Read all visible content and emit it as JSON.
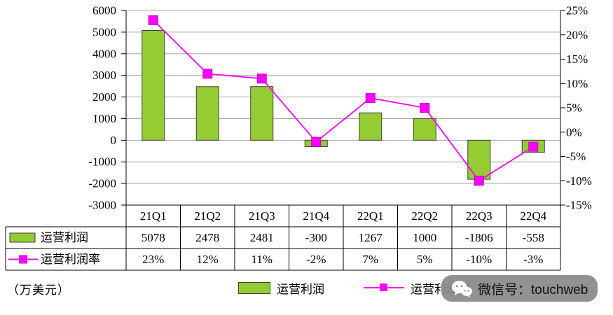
{
  "unit_label": "（万美元）",
  "watermark": {
    "text": "微信号：touchweb",
    "icon": "wechat-icon"
  },
  "legend": {
    "bar_label": "运营利润",
    "line_label": "运营利润率"
  },
  "colors": {
    "bar": "#95CB33",
    "bar_border": "#404040",
    "line": "#FF00FF",
    "marker_border": "#C400C4",
    "grid": "#A6A6A6",
    "axis": "#000000",
    "watermark_bg": "#8A8A8A"
  },
  "chart_data": {
    "type": "bar+line",
    "categories": [
      "21Q1",
      "21Q2",
      "21Q3",
      "21Q4",
      "22Q1",
      "22Q2",
      "22Q3",
      "22Q4"
    ],
    "series": [
      {
        "name": "运营利润",
        "type": "bar",
        "axis": "left",
        "values": [
          5078,
          2478,
          2481,
          -300,
          1267,
          1000,
          -1806,
          -558
        ]
      },
      {
        "name": "运营利润率",
        "type": "line",
        "axis": "right",
        "values_percent": [
          23,
          12,
          11,
          -2,
          7,
          5,
          -10,
          -3
        ]
      }
    ],
    "left_axis": {
      "min": -3000,
      "max": 6000,
      "step": 1000,
      "tick_labels": [
        "6000",
        "5000",
        "4000",
        "3000",
        "2000",
        "1000",
        "0",
        "-1000",
        "-2000",
        "-3000"
      ]
    },
    "right_axis": {
      "min": -15,
      "max": 25,
      "step": 5,
      "tick_labels": [
        "25%",
        "20%",
        "15%",
        "10%",
        "5%",
        "0%",
        "-5%",
        "-10%",
        "-15%"
      ]
    },
    "grid": true,
    "legend_position": "bottom",
    "title": ""
  },
  "table": {
    "rows": [
      {
        "label": "运营利润",
        "key": "bar-swatch",
        "values": [
          "5078",
          "2478",
          "2481",
          "-300",
          "1267",
          "1000",
          "-1806",
          "-558"
        ]
      },
      {
        "label": "运营利润率",
        "key": "line-swatch",
        "values": [
          "23%",
          "12%",
          "11%",
          "-2%",
          "7%",
          "5%",
          "-10%",
          "-3%"
        ]
      }
    ]
  }
}
